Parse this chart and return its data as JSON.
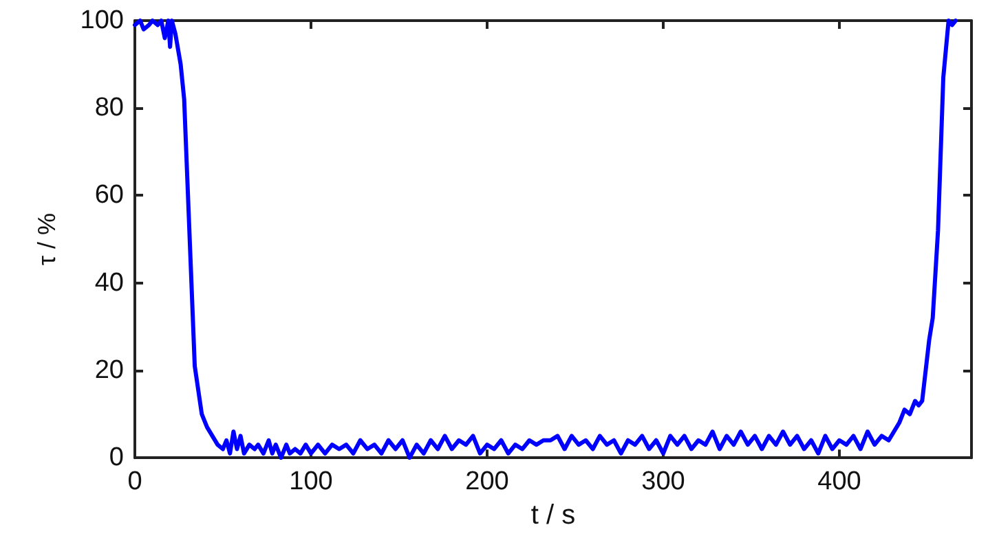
{
  "chart_data": {
    "type": "line",
    "xlabel": "t / s",
    "ylabel": "τ / %",
    "xlim": [
      0,
      475
    ],
    "ylim": [
      0,
      100
    ],
    "xticks": [
      0,
      100,
      200,
      300,
      400
    ],
    "yticks": [
      0,
      20,
      40,
      60,
      80,
      100
    ],
    "grid": false,
    "marker": "none",
    "line_style": "solid",
    "series": [
      {
        "color": "#0000ff",
        "x": [
          0,
          3,
          5,
          8,
          10,
          13,
          15,
          17,
          19,
          20,
          21,
          23,
          26,
          28,
          34,
          38,
          41,
          44,
          47,
          50,
          52,
          54,
          56,
          58,
          60,
          62,
          65,
          68,
          70,
          73,
          76,
          78,
          80,
          83,
          86,
          88,
          91,
          94,
          97,
          100,
          104,
          108,
          112,
          116,
          120,
          124,
          128,
          132,
          136,
          140,
          144,
          148,
          152,
          156,
          160,
          164,
          168,
          172,
          176,
          180,
          184,
          188,
          192,
          196,
          200,
          204,
          208,
          212,
          216,
          220,
          224,
          228,
          232,
          236,
          240,
          244,
          248,
          252,
          256,
          260,
          264,
          268,
          272,
          276,
          280,
          284,
          288,
          292,
          296,
          300,
          304,
          308,
          312,
          316,
          320,
          324,
          328,
          332,
          336,
          340,
          344,
          348,
          352,
          356,
          360,
          364,
          368,
          372,
          376,
          380,
          384,
          388,
          392,
          396,
          400,
          404,
          408,
          412,
          416,
          420,
          424,
          428,
          431,
          434,
          437,
          440,
          443,
          445,
          447,
          451,
          453,
          456,
          459,
          462,
          464,
          466
        ],
        "values": [
          99,
          100,
          98,
          99,
          100,
          99,
          100,
          96,
          100,
          94,
          100,
          97,
          90,
          82,
          21,
          10,
          7,
          5,
          3,
          2,
          4,
          1,
          6,
          2,
          5,
          1,
          3,
          2,
          3,
          1,
          4,
          1,
          3,
          0,
          3,
          1,
          2,
          1,
          3,
          1,
          3,
          1,
          3,
          2,
          3,
          1,
          4,
          2,
          3,
          1,
          4,
          2,
          4,
          0,
          3,
          1,
          4,
          2,
          5,
          2,
          4,
          3,
          5,
          1,
          3,
          2,
          4,
          1,
          3,
          2,
          4,
          3,
          4,
          4,
          5,
          2,
          5,
          3,
          4,
          2,
          5,
          3,
          4,
          1,
          4,
          3,
          5,
          2,
          4,
          1,
          5,
          3,
          5,
          2,
          4,
          3,
          6,
          2,
          5,
          3,
          6,
          3,
          5,
          2,
          5,
          3,
          6,
          3,
          5,
          2,
          4,
          1,
          5,
          2,
          4,
          3,
          5,
          2,
          6,
          3,
          5,
          4,
          6,
          8,
          11,
          10,
          13,
          12,
          13,
          27,
          32,
          52,
          87,
          100,
          99,
          100
        ]
      }
    ]
  }
}
